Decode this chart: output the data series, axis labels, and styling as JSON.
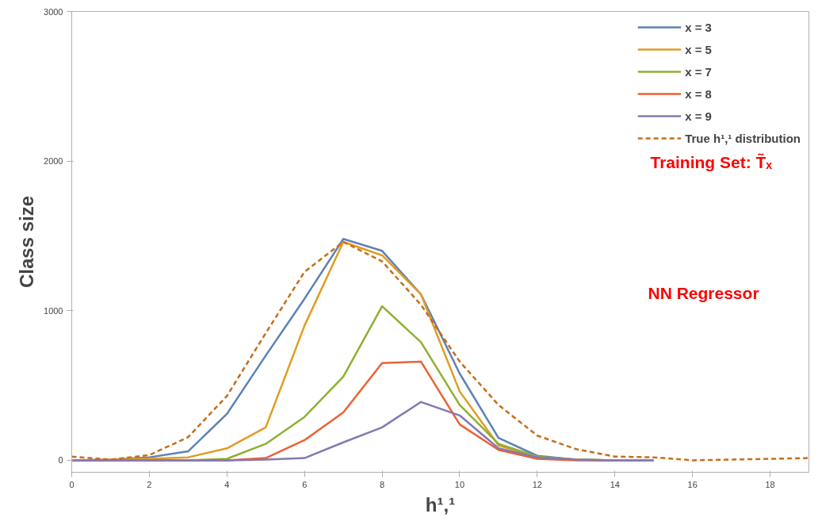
{
  "chart_data": {
    "type": "line",
    "xlabel": "h¹,¹",
    "ylabel": "Class size",
    "annotations": [
      "Training Set: T̃ₓ",
      "NN Regressor"
    ],
    "xlim": [
      0,
      19
    ],
    "ylim": [
      -80,
      3000
    ],
    "xticks": [
      0,
      2,
      4,
      6,
      8,
      10,
      12,
      14,
      16,
      18
    ],
    "yticks": [
      0,
      1000,
      2000,
      3000
    ],
    "grid": false,
    "legend": "top right",
    "marker": "none",
    "series": [
      {
        "name": "x = 3",
        "color": "#5e81b5",
        "x": [
          0,
          1,
          2,
          3,
          4,
          5,
          6,
          7,
          8,
          9,
          10,
          11,
          12,
          13,
          14,
          15
        ],
        "values": [
          0,
          5,
          20,
          60,
          310,
          700,
          1080,
          1480,
          1400,
          1110,
          580,
          150,
          30,
          5,
          0,
          0
        ]
      },
      {
        "name": "x = 5",
        "color": "#e19c24",
        "x": [
          0,
          1,
          2,
          3,
          4,
          5,
          6,
          7,
          8,
          9,
          10,
          11,
          12,
          13,
          14
        ],
        "values": [
          0,
          5,
          10,
          20,
          80,
          220,
          900,
          1460,
          1370,
          1110,
          460,
          100,
          20,
          5,
          0
        ]
      },
      {
        "name": "x = 7",
        "color": "#8fb032",
        "x": [
          0,
          1,
          2,
          3,
          4,
          5,
          6,
          7,
          8,
          9,
          10,
          11,
          12,
          13,
          14
        ],
        "values": [
          0,
          0,
          0,
          0,
          10,
          110,
          290,
          560,
          1030,
          790,
          370,
          110,
          25,
          5,
          0
        ]
      },
      {
        "name": "x = 8",
        "color": "#eb6235",
        "x": [
          0,
          1,
          2,
          3,
          4,
          5,
          6,
          7,
          8,
          9,
          10,
          11,
          12,
          13,
          14
        ],
        "values": [
          0,
          0,
          0,
          0,
          0,
          15,
          135,
          320,
          650,
          660,
          240,
          70,
          10,
          0,
          0
        ]
      },
      {
        "name": "x = 9",
        "color": "#8778b3",
        "x": [
          0,
          1,
          2,
          3,
          4,
          5,
          6,
          7,
          8,
          9,
          10,
          11,
          12,
          13,
          14,
          15
        ],
        "values": [
          0,
          0,
          0,
          0,
          0,
          5,
          15,
          120,
          220,
          390,
          300,
          80,
          20,
          5,
          0,
          0
        ]
      },
      {
        "name": "True h¹,¹ distribution",
        "color": "#c56e1a",
        "line_style": "dashed",
        "x": [
          0,
          1,
          2,
          3,
          4,
          5,
          6,
          7,
          8,
          9,
          10,
          11,
          12,
          13,
          14,
          15,
          16,
          17,
          18,
          19
        ],
        "values": [
          25,
          5,
          35,
          155,
          430,
          850,
          1260,
          1460,
          1330,
          1040,
          660,
          370,
          165,
          75,
          25,
          20,
          0,
          5,
          10,
          15
        ]
      }
    ]
  }
}
